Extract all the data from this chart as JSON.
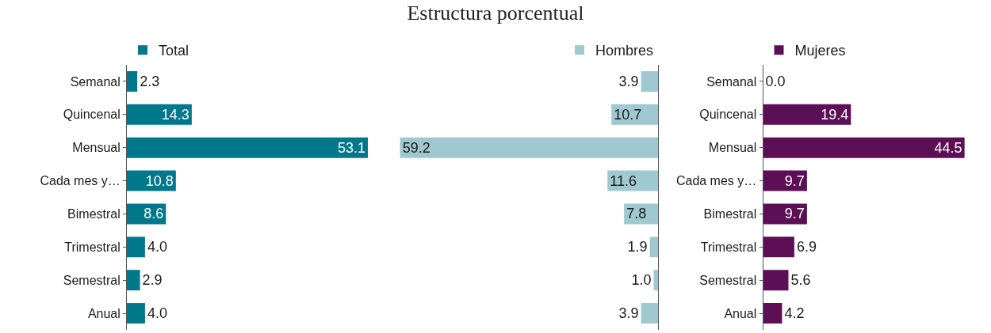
{
  "chart_data": [
    {
      "type": "bar",
      "orientation": "horizontal",
      "categories": [
        "Semanal",
        "Quincenal",
        "Mensual",
        "Cada mes y…",
        "Bimestral",
        "Trimestral",
        "Semestral",
        "Anual"
      ],
      "tick_labels": "y",
      "legend": "top left",
      "series": [
        {
          "name": "Total",
          "color": "#00788c",
          "values": [
            2.3,
            14.3,
            53.1,
            10.8,
            8.6,
            4.0,
            2.9,
            4.0
          ],
          "value_labels": [
            "2.3",
            "14.3",
            "53.1",
            "10.8",
            "8.6",
            "4.0",
            "2.9",
            "4.0"
          ]
        }
      ]
    },
    {
      "type": "bar",
      "orientation": "horizontal",
      "title": "Estructura porcentual",
      "categories": [
        null,
        null,
        null,
        null,
        null,
        null,
        null,
        null
      ],
      "tick_labels": false,
      "legend": "top right",
      "series": [
        {
          "name": "Hombres",
          "color": "#9fc8d0",
          "values": [
            3.9,
            10.7,
            59.2,
            11.6,
            7.8,
            1.9,
            1.0,
            3.9
          ],
          "value_labels": [
            "3.9",
            "10.7",
            "59.2",
            "11.6",
            "7.8",
            "1.9",
            "1.0",
            "3.9"
          ]
        }
      ]
    },
    {
      "type": "bar",
      "orientation": "horizontal",
      "categories": [
        "Semanal",
        "Quincenal",
        "Mensual",
        "Cada mes y…",
        "Bimestral",
        "Trimestral",
        "Semestral",
        "Anual"
      ],
      "tick_labels": "y",
      "legend": "top left",
      "series": [
        {
          "name": "Mujeres",
          "color": "#5c0f55",
          "values": [
            0.0,
            19.4,
            44.5,
            9.7,
            9.7,
            6.9,
            5.6,
            4.2
          ],
          "value_labels": [
            "0.0",
            "19.4",
            "44.5",
            "9.7",
            "9.7",
            "6.9",
            "5.6",
            "4.2"
          ]
        }
      ]
    }
  ]
}
